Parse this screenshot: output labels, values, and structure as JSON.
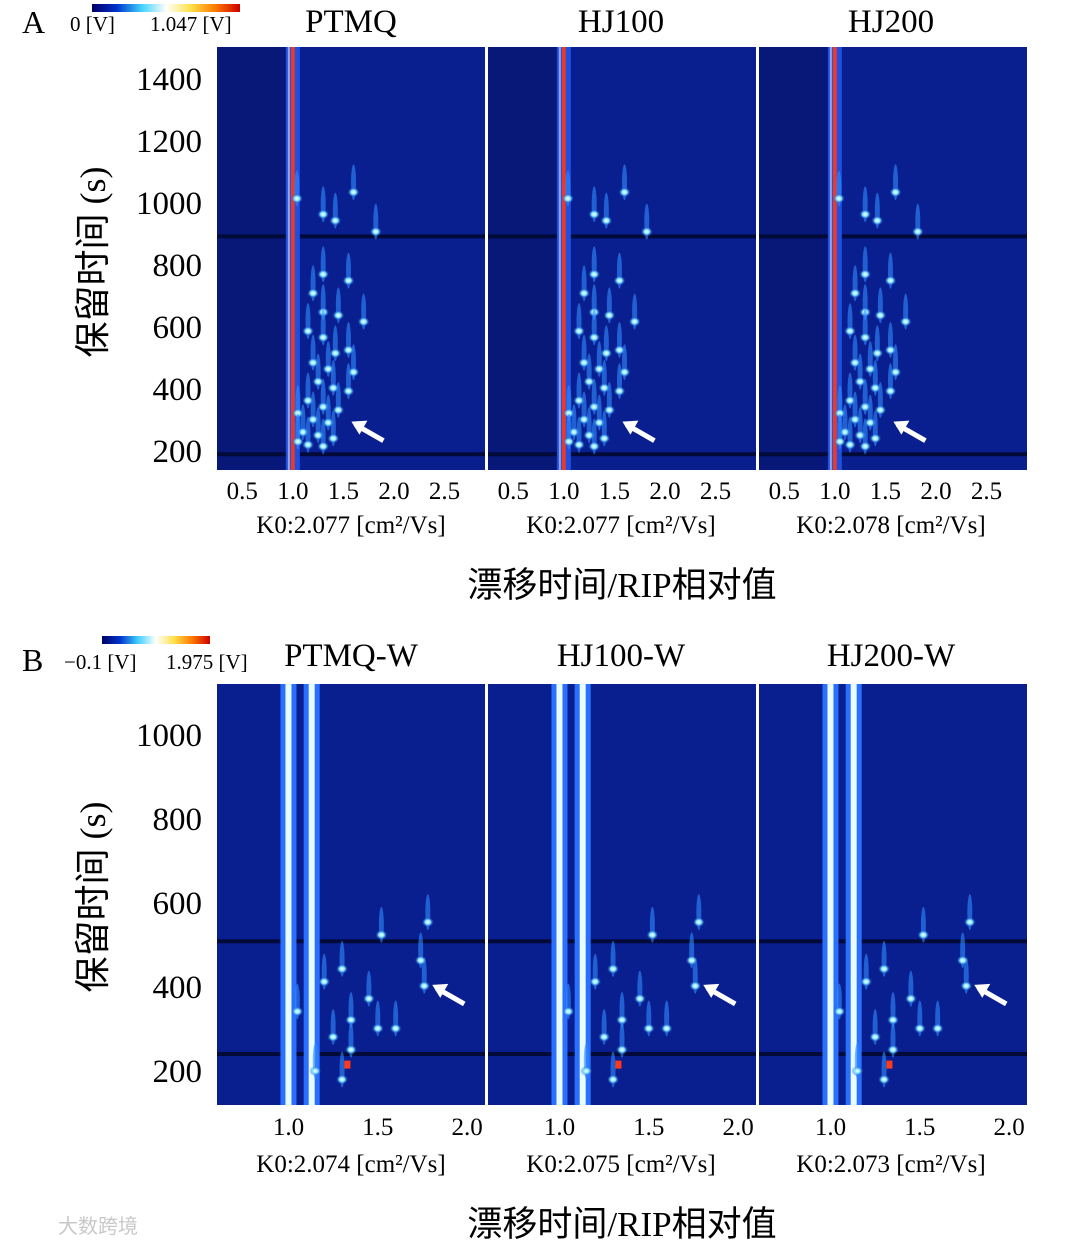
{
  "panels": [
    {
      "letter": "A",
      "colorbar": {
        "min_label": "0 [V]",
        "max_label": "1.047 [V]"
      },
      "y_ticks": [
        "200",
        "400",
        "600",
        "800",
        "1000",
        "1200",
        "1400"
      ],
      "y_label": "保留时间 (s)",
      "x_label": "漂移时间/RIP相对值",
      "subplots": [
        {
          "title": "PTMQ",
          "k0": "K0:2.077 [cm²/Vs]",
          "x_ticks": [
            "0.5",
            "1.0",
            "1.5",
            "2.0",
            "2.5"
          ]
        },
        {
          "title": "HJ100",
          "k0": "K0:2.077 [cm²/Vs]",
          "x_ticks": [
            "0.5",
            "1.0",
            "1.5",
            "2.0",
            "2.5"
          ]
        },
        {
          "title": "HJ200",
          "k0": "K0:2.078 [cm²/Vs]",
          "x_ticks": [
            "0.5",
            "1.0",
            "1.5",
            "2.0",
            "2.5"
          ]
        }
      ]
    },
    {
      "letter": "B",
      "colorbar": {
        "min_label": "−0.1 [V]",
        "max_label": "1.975 [V]"
      },
      "y_ticks": [
        "200",
        "400",
        "600",
        "800",
        "1000"
      ],
      "y_label": "保留时间 (s)",
      "x_label": "漂移时间/RIP相对值",
      "subplots": [
        {
          "title": "PTMQ-W",
          "k0": "K0:2.074 [cm²/Vs]",
          "x_ticks": [
            "1.0",
            "1.5",
            "2.0"
          ]
        },
        {
          "title": "HJ100-W",
          "k0": "K0:2.075 [cm²/Vs]",
          "x_ticks": [
            "1.0",
            "1.5",
            "2.0"
          ]
        },
        {
          "title": "HJ200-W",
          "k0": "K0:2.073 [cm²/Vs]",
          "x_ticks": [
            "1.0",
            "1.5",
            "2.0"
          ]
        }
      ]
    }
  ],
  "watermark": "大数跨境",
  "chart_data": [
    {
      "type": "heatmap",
      "panel": "A",
      "samples": [
        "PTMQ",
        "HJ100",
        "HJ200"
      ],
      "xlabel": "漂移时间/RIP相对值",
      "ylabel": "保留时间 (s)",
      "xlim": [
        0.25,
        2.9
      ],
      "ylim": [
        140,
        1480
      ],
      "colorscale": {
        "min": 0,
        "max": 1.047,
        "unit": "V"
      },
      "rip_position": 1.0,
      "annotated_arrow": {
        "x": 1.5,
        "y": 290
      },
      "horizontal_breaks": [
        880,
        190
      ],
      "spots": [
        {
          "x": 1.04,
          "y": 1000
        },
        {
          "x": 1.3,
          "y": 950
        },
        {
          "x": 1.42,
          "y": 930
        },
        {
          "x": 1.6,
          "y": 1020
        },
        {
          "x": 1.82,
          "y": 895
        },
        {
          "x": 1.3,
          "y": 760
        },
        {
          "x": 1.55,
          "y": 740
        },
        {
          "x": 1.2,
          "y": 700
        },
        {
          "x": 1.3,
          "y": 640
        },
        {
          "x": 1.45,
          "y": 630
        },
        {
          "x": 1.7,
          "y": 610
        },
        {
          "x": 1.15,
          "y": 580
        },
        {
          "x": 1.3,
          "y": 560
        },
        {
          "x": 1.55,
          "y": 520
        },
        {
          "x": 1.42,
          "y": 510
        },
        {
          "x": 1.2,
          "y": 480
        },
        {
          "x": 1.35,
          "y": 460
        },
        {
          "x": 1.6,
          "y": 450
        },
        {
          "x": 1.25,
          "y": 420
        },
        {
          "x": 1.4,
          "y": 400
        },
        {
          "x": 1.55,
          "y": 390
        },
        {
          "x": 1.15,
          "y": 360
        },
        {
          "x": 1.3,
          "y": 340
        },
        {
          "x": 1.45,
          "y": 330
        },
        {
          "x": 1.05,
          "y": 320
        },
        {
          "x": 1.2,
          "y": 300
        },
        {
          "x": 1.35,
          "y": 290
        },
        {
          "x": 1.1,
          "y": 260
        },
        {
          "x": 1.25,
          "y": 250
        },
        {
          "x": 1.4,
          "y": 240
        },
        {
          "x": 1.05,
          "y": 230
        },
        {
          "x": 1.15,
          "y": 220
        },
        {
          "x": 1.3,
          "y": 215
        }
      ]
    },
    {
      "type": "heatmap",
      "panel": "B",
      "samples": [
        "PTMQ-W",
        "HJ100-W",
        "HJ200-W"
      ],
      "xlabel": "漂移时间/RIP相对值",
      "ylabel": "保留时间 (s)",
      "xlim": [
        0.6,
        2.1
      ],
      "ylim": [
        120,
        1110
      ],
      "colorscale": {
        "min": -0.1,
        "max": 1.975,
        "unit": "V"
      },
      "bright_columns": [
        1.0,
        1.13
      ],
      "annotated_arrow": {
        "x": 1.76,
        "y": 400
      },
      "horizontal_breaks": [
        505,
        240
      ],
      "spots": [
        {
          "x": 1.52,
          "y": 520
        },
        {
          "x": 1.78,
          "y": 550
        },
        {
          "x": 1.76,
          "y": 400
        },
        {
          "x": 1.74,
          "y": 460
        },
        {
          "x": 1.45,
          "y": 370
        },
        {
          "x": 1.3,
          "y": 440
        },
        {
          "x": 1.2,
          "y": 410
        },
        {
          "x": 1.35,
          "y": 320
        },
        {
          "x": 1.5,
          "y": 300
        },
        {
          "x": 1.6,
          "y": 300
        },
        {
          "x": 1.25,
          "y": 280
        },
        {
          "x": 1.35,
          "y": 250
        },
        {
          "x": 1.05,
          "y": 340
        },
        {
          "x": 1.15,
          "y": 200
        },
        {
          "x": 1.3,
          "y": 180
        }
      ]
    }
  ]
}
